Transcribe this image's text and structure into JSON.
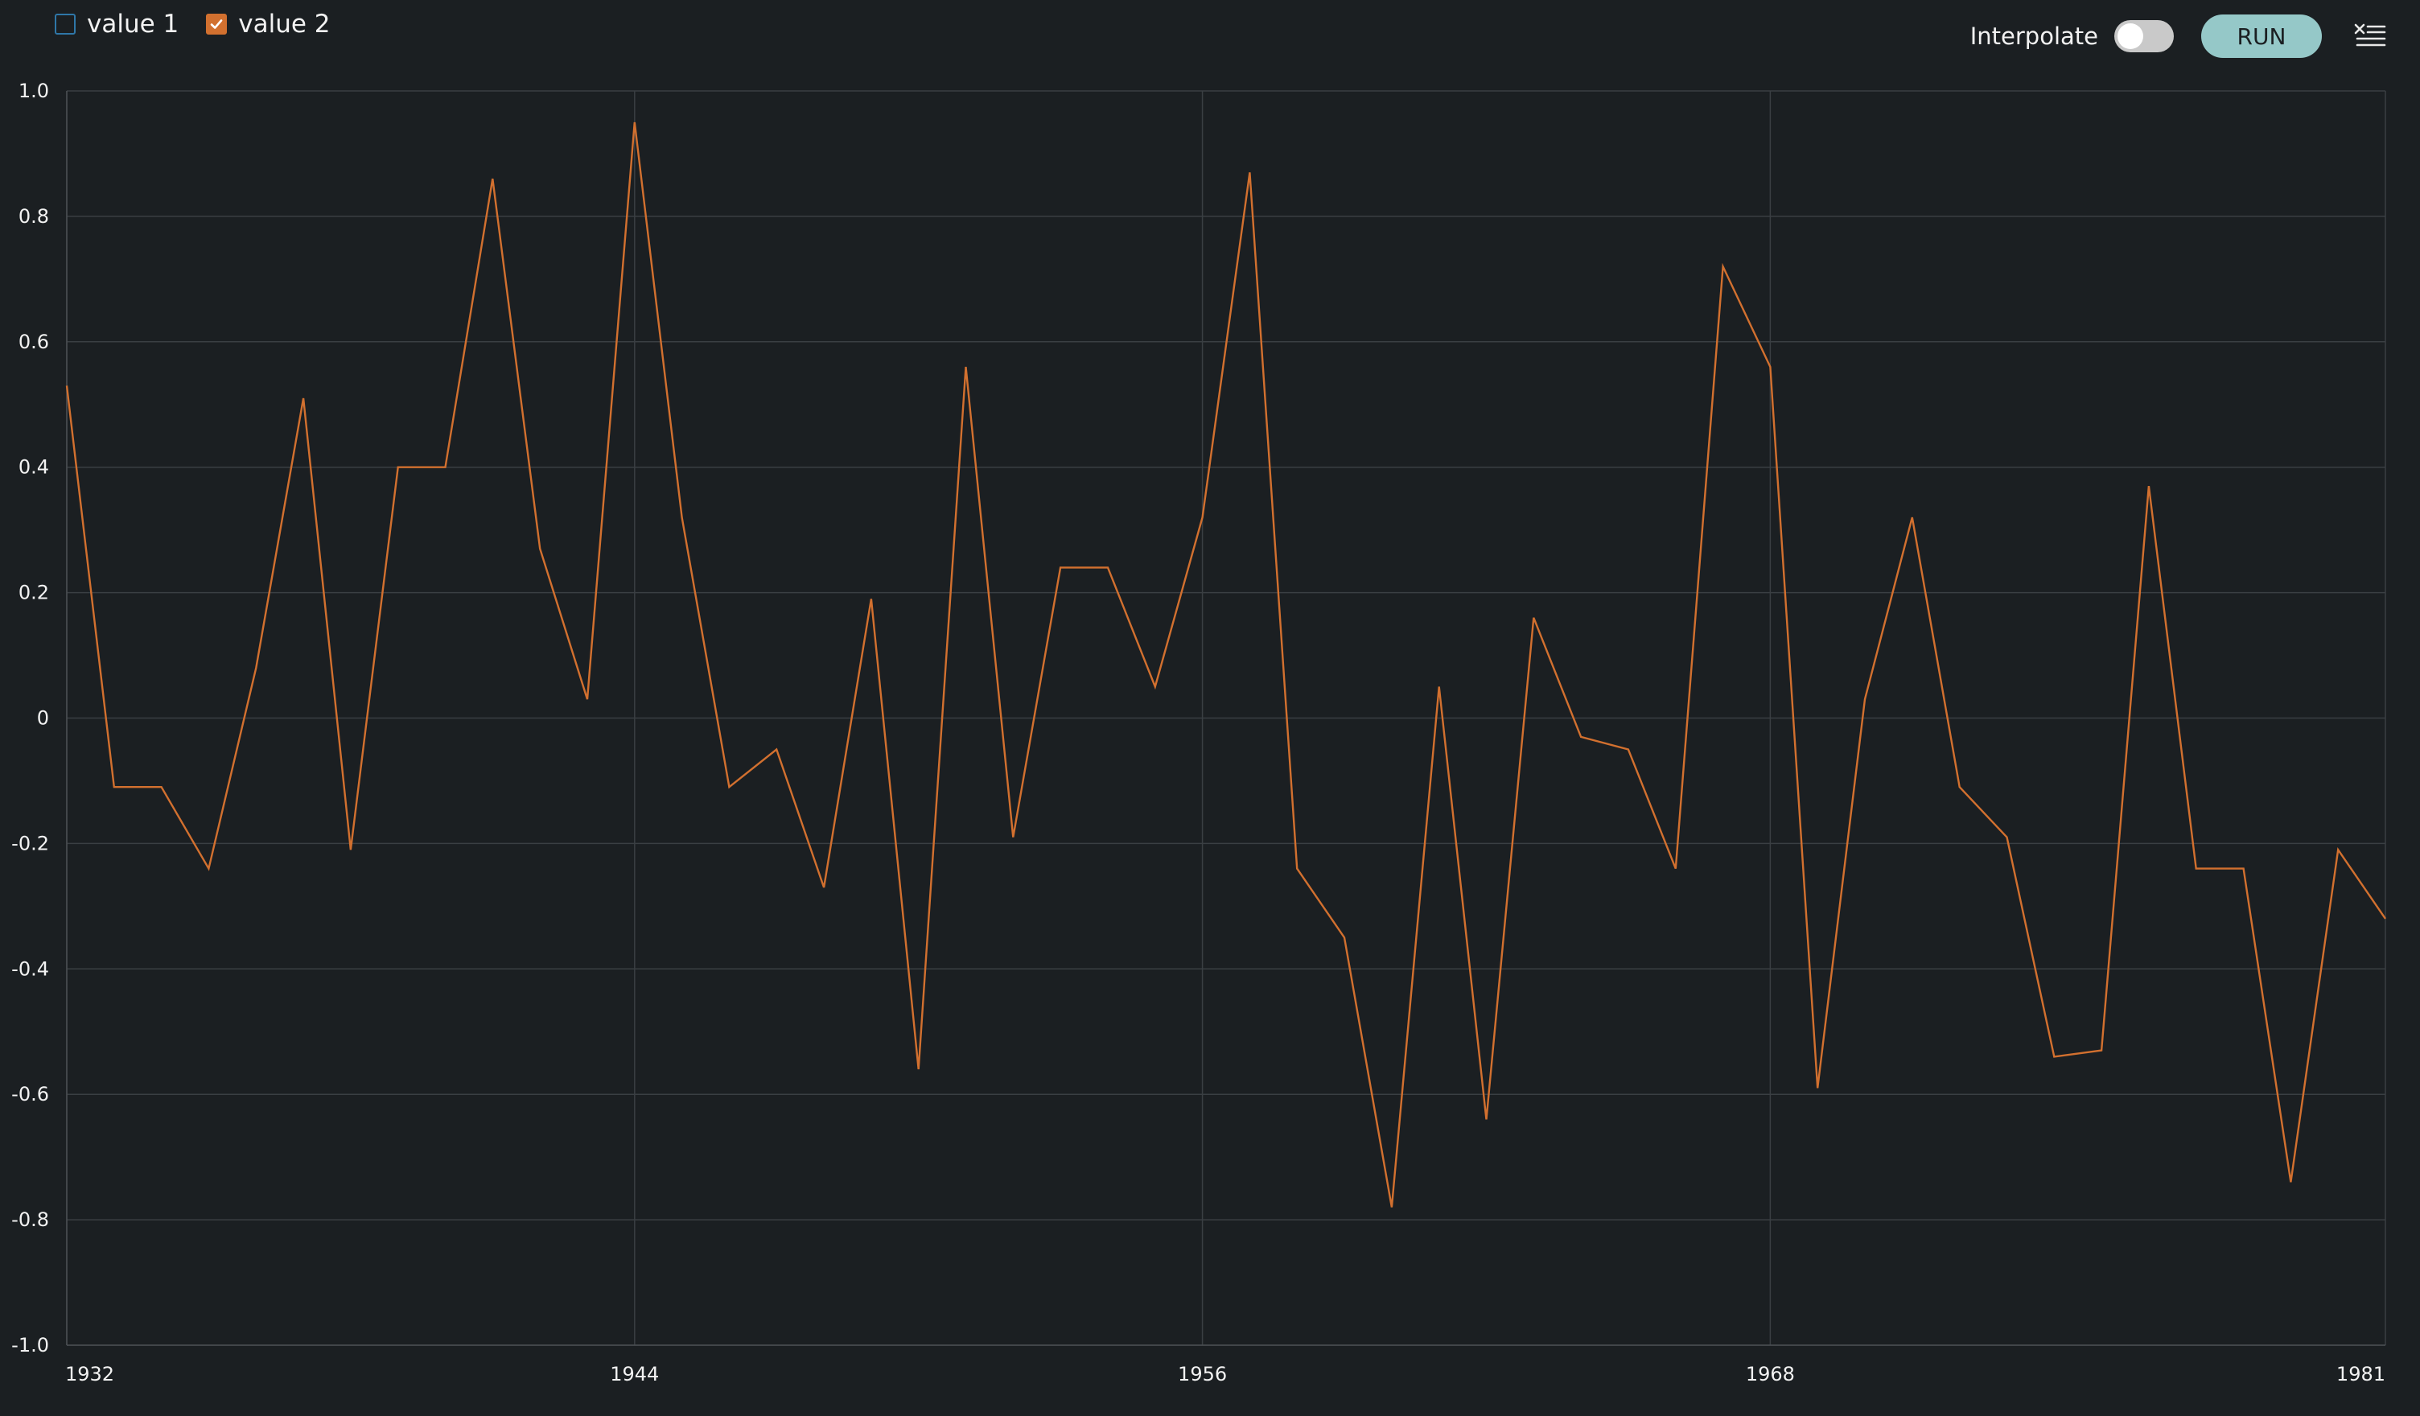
{
  "legend": {
    "items": [
      {
        "label": "value 1",
        "checked": false,
        "color": "#2f77a8"
      },
      {
        "label": "value 2",
        "checked": true,
        "color": "#d2702f"
      }
    ]
  },
  "controls": {
    "interpolate_label": "Interpolate",
    "interpolate_on": false,
    "run_label": "RUN",
    "menu_icon": "clear-list-icon"
  },
  "chart_data": {
    "type": "line",
    "title": "",
    "xlabel": "",
    "ylabel": "",
    "xlim": [
      1932,
      1981
    ],
    "ylim": [
      -1.0,
      1.0
    ],
    "grid": true,
    "x_ticks": [
      1932,
      1944,
      1956,
      1968,
      1981
    ],
    "y_ticks": [
      1.0,
      0.8,
      0.6,
      0.4,
      0.2,
      0,
      -0.2,
      -0.4,
      -0.6,
      -0.8,
      -1.0
    ],
    "y_tick_labels": [
      "1.0",
      "0.8",
      "0.6",
      "0.4",
      "0.2",
      "0",
      "-0.2",
      "-0.4",
      "-0.6",
      "-0.8",
      "-1.0"
    ],
    "x": [
      1932,
      1933,
      1934,
      1935,
      1936,
      1937,
      1938,
      1939,
      1940,
      1941,
      1942,
      1943,
      1944,
      1945,
      1946,
      1947,
      1948,
      1949,
      1950,
      1951,
      1952,
      1953,
      1954,
      1955,
      1956,
      1957,
      1958,
      1959,
      1960,
      1961,
      1962,
      1963,
      1964,
      1965,
      1966,
      1967,
      1968,
      1969,
      1970,
      1971,
      1972,
      1973,
      1974,
      1975,
      1976,
      1977,
      1978,
      1979,
      1980,
      1981
    ],
    "series": [
      {
        "name": "value 2",
        "color": "#d2702f",
        "values": [
          0.53,
          -0.11,
          -0.11,
          -0.24,
          0.08,
          0.51,
          -0.21,
          0.4,
          0.4,
          0.86,
          0.27,
          0.03,
          0.95,
          0.32,
          -0.11,
          -0.05,
          -0.27,
          0.19,
          -0.56,
          0.56,
          -0.19,
          0.24,
          0.24,
          0.05,
          0.32,
          0.87,
          -0.24,
          -0.35,
          -0.78,
          0.05,
          -0.64,
          0.16,
          -0.03,
          -0.05,
          -0.24,
          0.72,
          0.56,
          -0.59,
          0.03,
          0.32,
          -0.11,
          -0.19,
          -0.54,
          -0.53,
          0.37,
          -0.24,
          -0.24,
          -0.74,
          -0.21,
          -0.32
        ]
      }
    ]
  }
}
